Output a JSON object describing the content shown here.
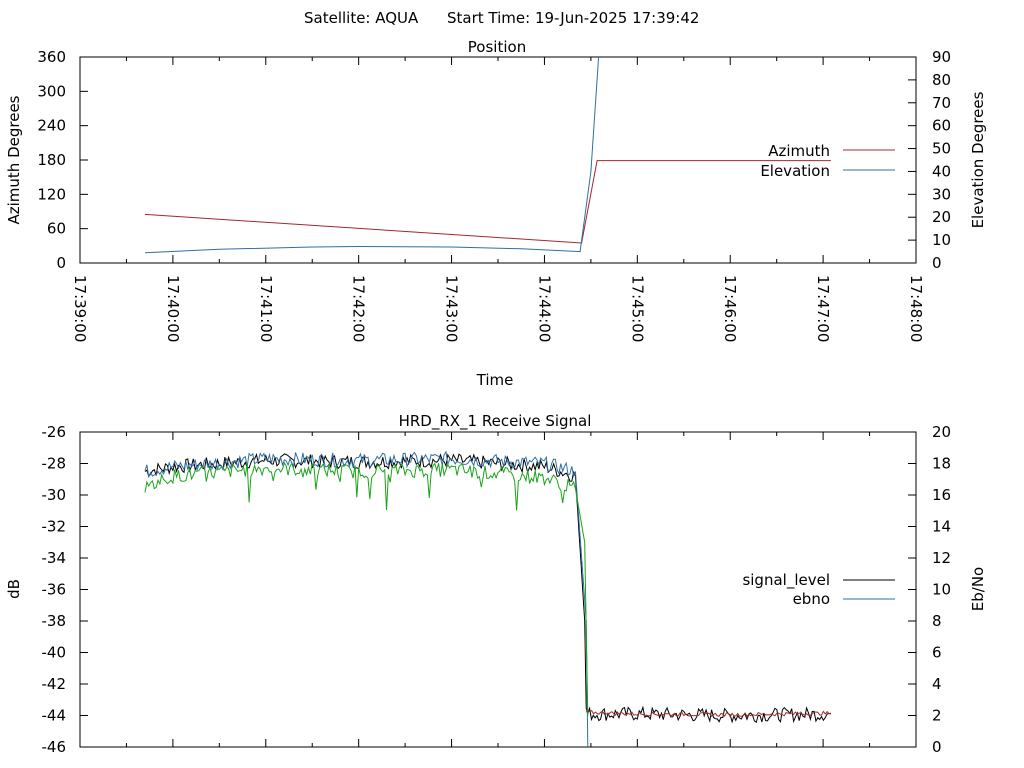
{
  "header": {
    "satellite": "Satellite: AQUA",
    "start_time": "Start Time: 19-Jun-2025 17:39:42"
  },
  "chart_data": [
    {
      "type": "line",
      "title": "Position",
      "xlabel": "Time",
      "ylabel": "Azimuth Degrees",
      "y2label": "Elevation Degrees",
      "xlim": [
        "17:39:00",
        "17:48:00"
      ],
      "xticks": [
        "17:39:00",
        "17:40:00",
        "17:41:00",
        "17:42:00",
        "17:43:00",
        "17:44:00",
        "17:45:00",
        "17:46:00",
        "17:47:00",
        "17:48:00"
      ],
      "ylim": [
        0,
        360
      ],
      "yticks": [
        "0",
        "60",
        "120",
        "180",
        "240",
        "300",
        "360"
      ],
      "y2lim": [
        0,
        90
      ],
      "y2ticks": [
        "0",
        "10",
        "20",
        "30",
        "40",
        "50",
        "60",
        "70",
        "80",
        "90"
      ],
      "legend_position": "right",
      "series": [
        {
          "name": "Azimuth",
          "axis": "y",
          "color": "#a0282d",
          "x": [
            "17:39:42",
            "17:44:24",
            "17:44:34",
            "17:47:05"
          ],
          "values": [
            85,
            35,
            179,
            179
          ]
        },
        {
          "name": "Elevation",
          "axis": "y2",
          "color": "#2e6fa3",
          "x": [
            "17:39:42",
            "17:40:30",
            "17:41:30",
            "17:42:00",
            "17:43:00",
            "17:43:45",
            "17:44:23",
            "17:44:30",
            "17:44:35"
          ],
          "values": [
            4.5,
            6,
            7,
            7.2,
            7,
            6.2,
            5,
            40,
            90
          ]
        }
      ]
    },
    {
      "type": "line",
      "title": "HRD_RX_1 Receive Signal",
      "xlabel": "",
      "ylabel": "dB",
      "y2label": "Eb/No",
      "xlim": [
        "17:39:00",
        "17:48:00"
      ],
      "ylim": [
        -46,
        -26
      ],
      "yticks": [
        "-26",
        "-28",
        "-30",
        "-32",
        "-34",
        "-36",
        "-38",
        "-40",
        "-42",
        "-44",
        "-46"
      ],
      "y2lim": [
        0,
        20
      ],
      "y2ticks": [
        "0",
        "2",
        "4",
        "6",
        "8",
        "10",
        "12",
        "14",
        "16",
        "18",
        "20"
      ],
      "legend_position": "right",
      "series": [
        {
          "name": "signal_level",
          "axis": "y",
          "color": "#000000",
          "x": [
            "17:39:42",
            "17:40:00",
            "17:41:00",
            "17:42:00",
            "17:43:00",
            "17:44:00",
            "17:44:20",
            "17:44:26",
            "17:44:27",
            "17:44:28",
            "17:45:00",
            "17:46:00",
            "17:47:05"
          ],
          "values": [
            -28.5,
            -28.2,
            -27.8,
            -27.9,
            -27.8,
            -28.2,
            -28.8,
            -38,
            -43.5,
            -43.9,
            -43.9,
            -44.0,
            -43.9
          ]
        },
        {
          "name": "ebno",
          "axis": "y2",
          "color": "#2e6fa3",
          "x": [
            "17:39:42",
            "17:40:00",
            "17:41:00",
            "17:42:00",
            "17:43:00",
            "17:44:00",
            "17:44:20",
            "17:44:27",
            "17:44:28"
          ],
          "values": [
            17.5,
            17.8,
            18.3,
            18.2,
            18.3,
            18.0,
            17.5,
            8,
            0
          ]
        },
        {
          "name": "",
          "axis": "y",
          "color": "#1aa318",
          "x": [
            "17:39:42",
            "17:40:00",
            "17:41:00",
            "17:42:00",
            "17:43:00",
            "17:44:00",
            "17:44:20",
            "17:44:26",
            "17:44:28"
          ],
          "values": [
            -29.5,
            -28.8,
            -28.3,
            -28.5,
            -28.4,
            -28.9,
            -29.6,
            -33,
            -44
          ]
        },
        {
          "name": "",
          "axis": "y",
          "color": "#a0282d",
          "x": [
            "17:44:27",
            "17:45:00",
            "17:46:00",
            "17:47:05"
          ],
          "values": [
            -43.8,
            -43.9,
            -43.95,
            -43.85
          ]
        }
      ]
    }
  ]
}
